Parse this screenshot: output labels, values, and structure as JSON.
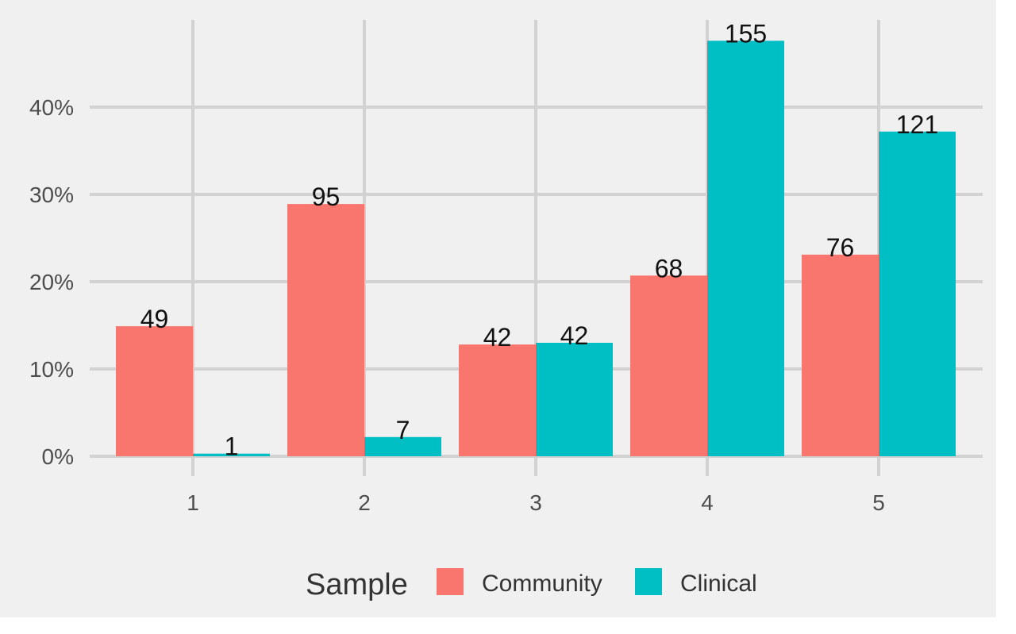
{
  "chart_data": {
    "type": "bar",
    "categories": [
      "1",
      "2",
      "3",
      "4",
      "5"
    ],
    "series": [
      {
        "name": "Community",
        "color": "#f8766d",
        "values": [
          14.9,
          28.9,
          12.8,
          20.7,
          23.1
        ],
        "labels": [
          "49",
          "95",
          "42",
          "68",
          "76"
        ]
      },
      {
        "name": "Clinical",
        "color": "#00bfc4",
        "values": [
          0.3,
          2.2,
          13.0,
          47.6,
          37.2
        ],
        "labels": [
          "1",
          "7",
          "42",
          "155",
          "121"
        ]
      }
    ],
    "ylim": [
      0,
      50
    ],
    "yticks": [
      0,
      10,
      20,
      30,
      40
    ],
    "ytick_labels": [
      "0%",
      "10%",
      "20%",
      "30%",
      "40%"
    ],
    "grid": true,
    "legend": {
      "title": "Sample",
      "position": "bottom",
      "entries": [
        "Community",
        "Clinical"
      ]
    }
  }
}
